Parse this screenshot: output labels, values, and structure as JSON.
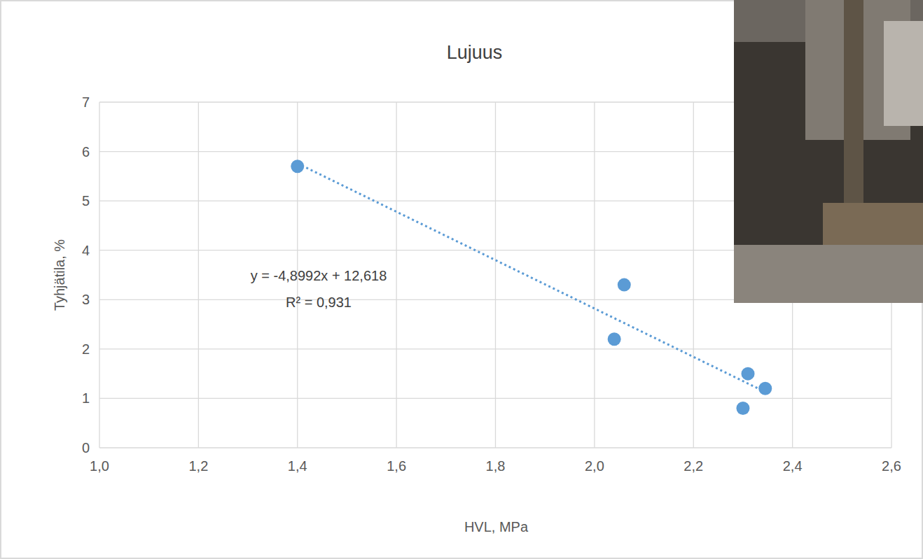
{
  "chart_data": {
    "type": "scatter",
    "title": "Lujuus",
    "x_label": "HVL, MPa",
    "y_label": "Tyhjätila, %",
    "annotations": [
      "y = -4,8992x + 12,618",
      "R² = 0,931"
    ],
    "xlim": [
      1.0,
      2.6
    ],
    "ylim": [
      0,
      7
    ],
    "xticks": [
      {
        "value": 1.0,
        "label": "1,0"
      },
      {
        "value": 1.2,
        "label": "1,2"
      },
      {
        "value": 1.4,
        "label": "1,4"
      },
      {
        "value": 1.6,
        "label": "1,6"
      },
      {
        "value": 1.8,
        "label": "1,8"
      },
      {
        "value": 2.0,
        "label": "2,0"
      },
      {
        "value": 2.2,
        "label": "2,2"
      },
      {
        "value": 2.4,
        "label": "2,4"
      },
      {
        "value": 2.6,
        "label": "2,6"
      }
    ],
    "yticks": [
      0,
      1,
      2,
      3,
      4,
      5,
      6,
      7
    ],
    "grid": true,
    "series": [
      {
        "type": "scatter",
        "marker": "circle",
        "color": "#5b9bd5",
        "x": [
          1.4,
          2.06,
          2.04,
          2.31,
          2.345,
          2.3
        ],
        "values": [
          5.7,
          3.3,
          2.2,
          1.5,
          1.2,
          0.8
        ]
      },
      {
        "type": "line",
        "line_style": "dotted",
        "color": "#5b9bd5",
        "x": [
          1.4,
          2.345
        ],
        "values": [
          5.76,
          1.13
        ]
      }
    ]
  }
}
